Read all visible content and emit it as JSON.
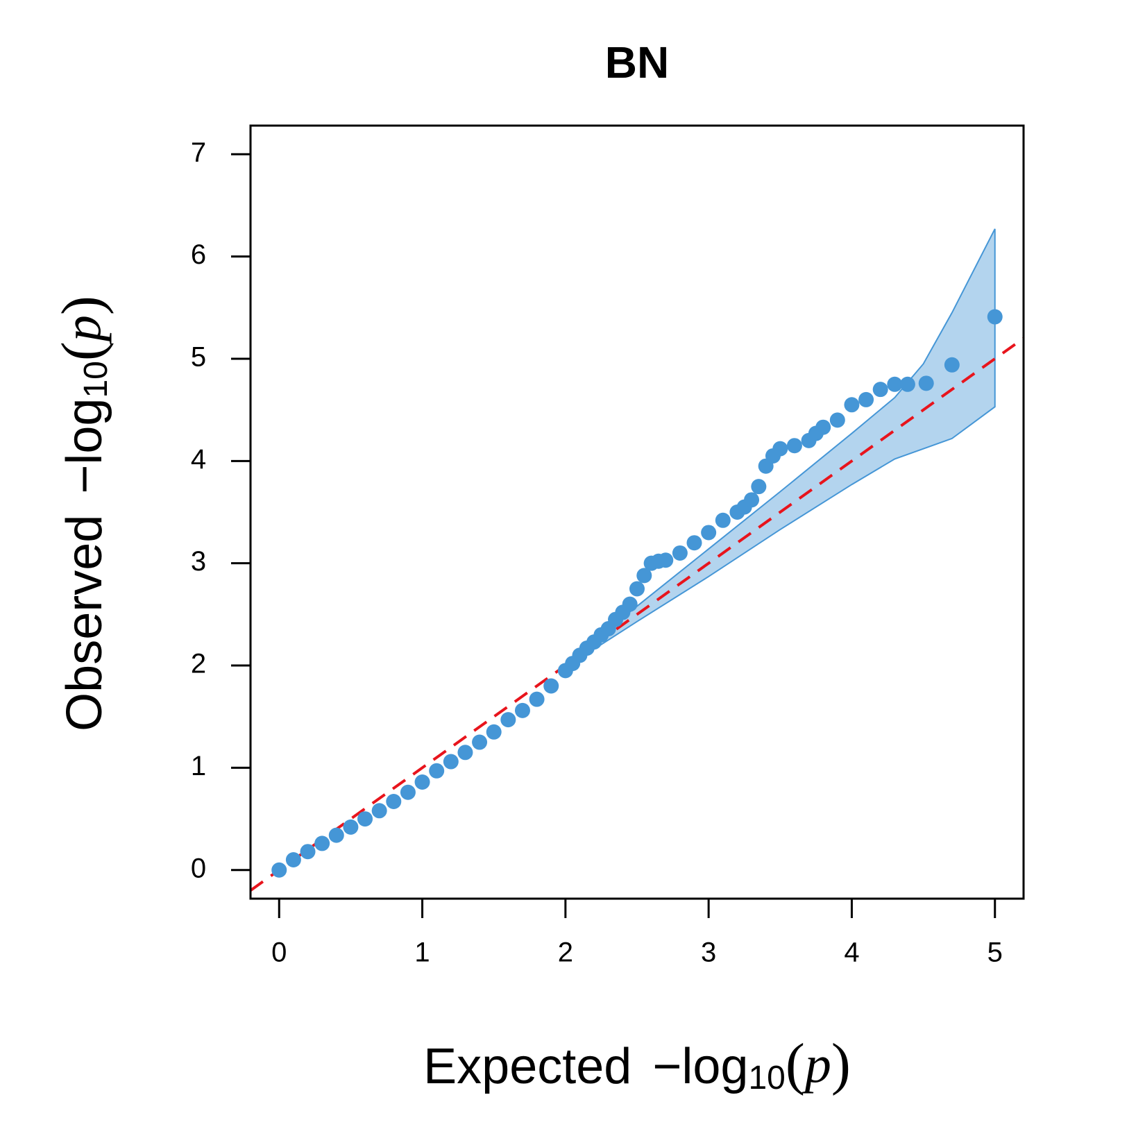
{
  "chart_data": {
    "type": "qq",
    "title": "BN",
    "xlabel": [
      "Expected",
      "−log",
      "10",
      "(",
      "p",
      ")"
    ],
    "ylabel": [
      "Observed",
      "−log",
      "10",
      "(",
      "p",
      ")"
    ],
    "x": [
      0,
      0.1,
      0.2,
      0.3,
      0.4,
      0.5,
      0.6,
      0.7,
      0.8,
      0.9,
      1.0,
      1.1,
      1.2,
      1.3,
      1.4,
      1.5,
      1.6,
      1.7,
      1.8,
      1.9,
      2.0,
      2.05,
      2.1,
      2.15,
      2.2,
      2.25,
      2.3,
      2.35,
      2.4,
      2.45,
      2.5,
      2.55,
      2.6,
      2.65,
      2.7,
      2.8,
      2.9,
      3.0,
      3.1,
      3.2,
      3.25,
      3.3,
      3.35,
      3.4,
      3.45,
      3.5,
      3.6,
      3.7,
      3.75,
      3.8,
      3.9,
      4.0,
      4.1,
      4.2,
      4.3,
      4.39,
      4.52,
      4.7,
      5.0
    ],
    "series": [
      {
        "name": "observed",
        "color": "#4596d6",
        "values": [
          0,
          0.1,
          0.18,
          0.26,
          0.34,
          0.42,
          0.5,
          0.58,
          0.67,
          0.76,
          0.86,
          0.97,
          1.06,
          1.15,
          1.25,
          1.35,
          1.47,
          1.56,
          1.67,
          1.8,
          1.95,
          2.02,
          2.1,
          2.17,
          2.23,
          2.3,
          2.36,
          2.45,
          2.52,
          2.6,
          2.75,
          2.88,
          3.0,
          3.02,
          3.03,
          3.1,
          3.2,
          3.3,
          3.42,
          3.5,
          3.55,
          3.62,
          3.75,
          3.95,
          4.05,
          4.12,
          4.15,
          4.2,
          4.27,
          4.33,
          4.4,
          4.55,
          4.6,
          4.7,
          4.75,
          4.75,
          4.76,
          4.94,
          5.41
        ]
      }
    ],
    "band": {
      "color": "#b3d4ee",
      "edge_color": "#4596d6",
      "x": [
        2.1,
        2.5,
        3.0,
        3.5,
        4.0,
        4.3,
        4.5,
        4.7,
        5.0
      ],
      "upper": [
        2.14,
        2.58,
        3.14,
        3.7,
        4.27,
        4.62,
        4.95,
        5.45,
        6.27
      ],
      "lower": [
        2.07,
        2.43,
        2.87,
        3.33,
        3.77,
        4.02,
        4.12,
        4.22,
        4.53
      ]
    },
    "reference_line": {
      "intercept": 0,
      "slope": 1,
      "color": "#e8141c"
    },
    "xlim": [
      -0.2,
      5.2
    ],
    "ylim": [
      -0.28,
      7.28
    ],
    "xticks": [
      0,
      1,
      2,
      3,
      4,
      5
    ],
    "yticks": [
      0,
      1,
      2,
      3,
      4,
      5,
      6,
      7
    ]
  }
}
